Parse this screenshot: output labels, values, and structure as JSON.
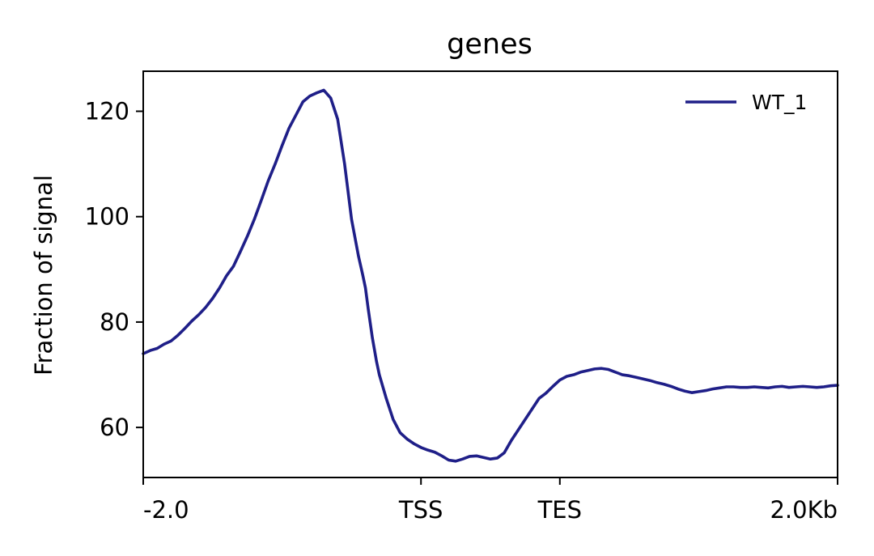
{
  "chart_data": {
    "type": "line",
    "title": "genes",
    "xlabel": "",
    "ylabel": "Fraction of signal",
    "x_ticks": [
      {
        "x": -2000,
        "label": "-2.0"
      },
      {
        "x": 0,
        "label": "TSS"
      },
      {
        "x": 1000,
        "label": "TES"
      },
      {
        "x": 3000,
        "label": "2.0Kb"
      }
    ],
    "y_ticks": [
      60,
      80,
      100,
      120
    ],
    "xlim": [
      -2000,
      3000
    ],
    "ylim": [
      50.5,
      127.6
    ],
    "grid": false,
    "legend_position": "top-right",
    "series": [
      {
        "name": "WT_1",
        "color": "#1f1f88",
        "x": [
          -2000,
          -1950,
          -1900,
          -1850,
          -1800,
          -1750,
          -1700,
          -1650,
          -1600,
          -1550,
          -1500,
          -1450,
          -1400,
          -1350,
          -1300,
          -1250,
          -1200,
          -1150,
          -1100,
          -1050,
          -1000,
          -950,
          -900,
          -850,
          -800,
          -750,
          -700,
          -650,
          -600,
          -550,
          -500,
          -450,
          -420,
          -400,
          -380,
          -350,
          -320,
          -300,
          -250,
          -200,
          -150,
          -100,
          -50,
          0,
          50,
          100,
          150,
          200,
          250,
          300,
          350,
          400,
          450,
          500,
          550,
          600,
          650,
          700,
          750,
          800,
          850,
          900,
          950,
          1000,
          1050,
          1100,
          1150,
          1200,
          1250,
          1300,
          1350,
          1400,
          1450,
          1500,
          1550,
          1600,
          1650,
          1700,
          1750,
          1800,
          1850,
          1900,
          1950,
          2000,
          2050,
          2100,
          2150,
          2200,
          2250,
          2300,
          2350,
          2400,
          2450,
          2500,
          2550,
          2600,
          2650,
          2700,
          2750,
          2800,
          2850,
          2900,
          2950,
          3000
        ],
        "values": [
          74.0,
          74.6,
          75.0,
          75.8,
          76.4,
          77.5,
          78.8,
          80.2,
          81.4,
          82.8,
          84.5,
          86.5,
          88.8,
          90.6,
          93.4,
          96.3,
          99.5,
          103.1,
          106.8,
          110.0,
          113.5,
          116.8,
          119.3,
          121.8,
          122.9,
          123.5,
          124.0,
          122.5,
          118.5,
          110.0,
          99.5,
          92.5,
          89.0,
          86.5,
          82.5,
          77.0,
          72.5,
          70.0,
          65.5,
          61.5,
          59.0,
          57.8,
          56.9,
          56.2,
          55.7,
          55.3,
          54.6,
          53.8,
          53.6,
          54.0,
          54.5,
          54.6,
          54.3,
          54.0,
          54.2,
          55.2,
          57.5,
          59.5,
          61.5,
          63.5,
          65.5,
          66.5,
          67.8,
          69.0,
          69.7,
          70.0,
          70.5,
          70.8,
          71.1,
          71.2,
          71.0,
          70.5,
          70.0,
          69.8,
          69.5,
          69.2,
          68.9,
          68.5,
          68.2,
          67.8,
          67.3,
          66.9,
          66.6,
          66.8,
          67.0,
          67.3,
          67.5,
          67.7,
          67.7,
          67.6,
          67.6,
          67.7,
          67.6,
          67.5,
          67.7,
          67.8,
          67.6,
          67.7,
          67.8,
          67.7,
          67.6,
          67.7,
          67.9,
          68.0
        ]
      }
    ]
  }
}
